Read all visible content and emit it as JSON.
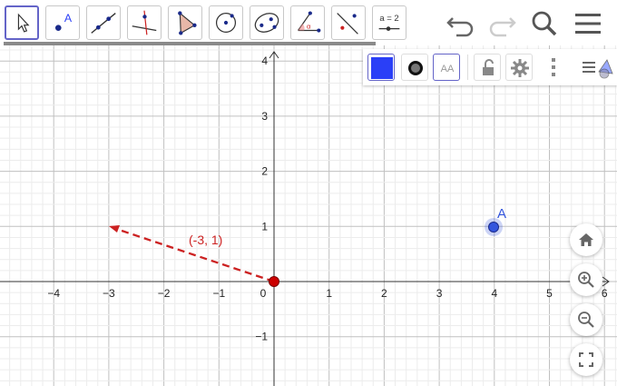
{
  "toolbar": {
    "tools": [
      {
        "name": "move-tool",
        "icon": "arrow-cursor-icon",
        "selected": true
      },
      {
        "name": "point-tool",
        "icon": "point-icon",
        "label": "A"
      },
      {
        "name": "line-tool",
        "icon": "line-icon"
      },
      {
        "name": "perpendicular-tool",
        "icon": "perpendicular-line-icon"
      },
      {
        "name": "polygon-tool",
        "icon": "polygon-icon"
      },
      {
        "name": "circle-tool",
        "icon": "circle-center-point-icon"
      },
      {
        "name": "ellipse-tool",
        "icon": "ellipse-icon"
      },
      {
        "name": "angle-tool",
        "icon": "angle-icon",
        "label": "α"
      },
      {
        "name": "reflect-tool",
        "icon": "reflect-icon"
      },
      {
        "name": "slider-tool",
        "icon": "slider-icon",
        "label": "a = 2"
      }
    ],
    "undo": "undo-icon",
    "redo": "redo-icon",
    "search": "search-icon",
    "menu": "hamburger-menu-icon"
  },
  "style_bar": {
    "color": "#2a3ff7",
    "items": [
      "color-swatch",
      "point-style-icon",
      "label-style-icon",
      "lock-icon",
      "gear-icon",
      "more-vert-icon",
      "algebra-view-icon"
    ],
    "label_text": "AA"
  },
  "graph": {
    "x_ticks": [
      "−4",
      "−3",
      "−2",
      "−1",
      "0",
      "1",
      "2",
      "3",
      "4",
      "5",
      "6"
    ],
    "y_ticks": [
      "4",
      "3",
      "2",
      "1",
      "−1"
    ],
    "point_A": {
      "label": "A",
      "x": 4,
      "y": 1,
      "color": "#3355dd"
    },
    "origin_point": {
      "x": 0,
      "y": 0,
      "color": "#cc0000"
    },
    "vector": {
      "label": "(-3, 1)",
      "x": -3,
      "y": 1,
      "color": "#cc0000"
    }
  },
  "nav": [
    "home-icon",
    "zoom-in-icon",
    "zoom-out-icon",
    "fullscreen-icon"
  ]
}
